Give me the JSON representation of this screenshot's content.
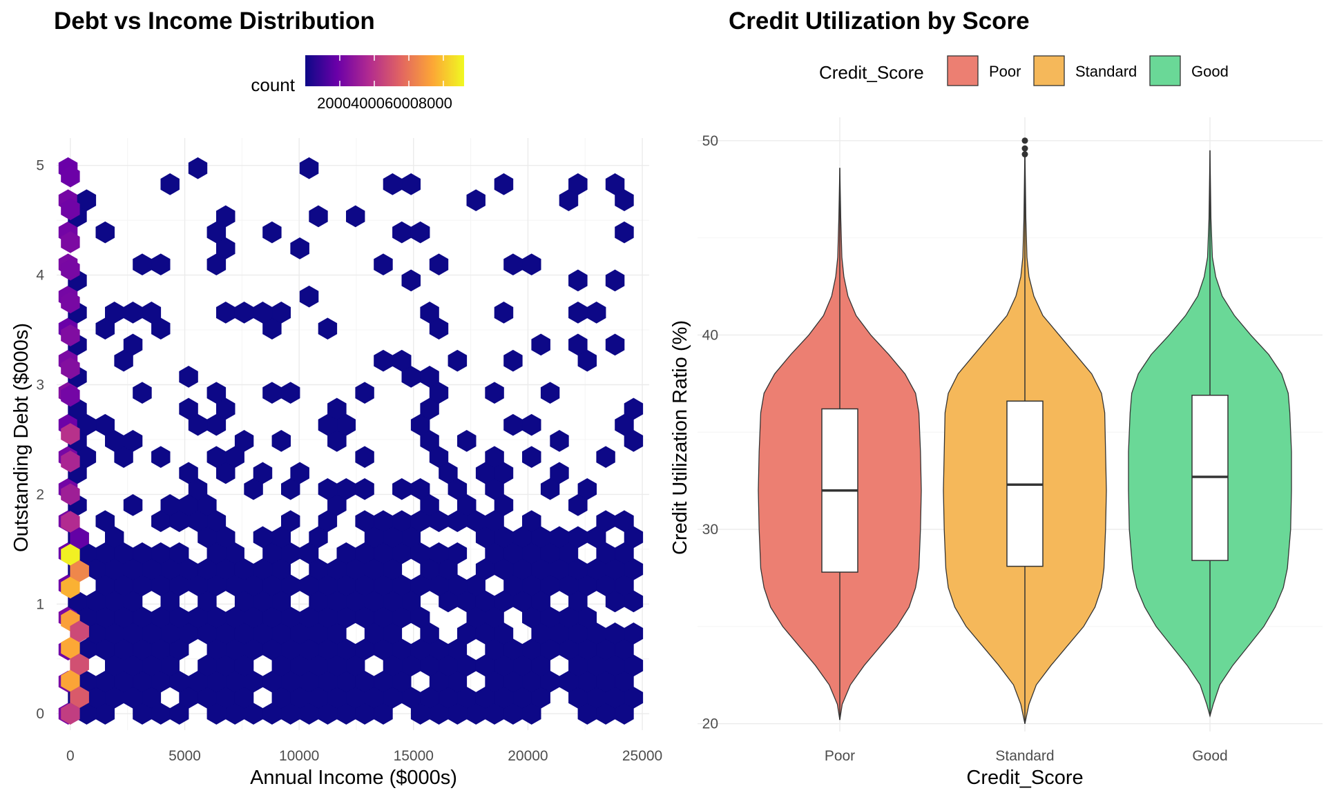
{
  "chart_data": [
    {
      "type": "hexbin",
      "title": "Debt vs Income Distribution",
      "xlabel": "Annual Income ($000s)",
      "ylabel": "Outstanding Debt ($000s)",
      "xlim": [
        -600,
        25300
      ],
      "ylim": [
        -0.15,
        5.25
      ],
      "x_ticks": [
        0,
        5000,
        10000,
        15000,
        20000,
        25000
      ],
      "x_tick_labels": [
        "0",
        "5000",
        "10000",
        "15000",
        "20000",
        "25000"
      ],
      "y_ticks": [
        0,
        1,
        2,
        3,
        4,
        5
      ],
      "y_tick_labels": [
        "0",
        "1",
        "2",
        "3",
        "4",
        "5"
      ],
      "grid": true,
      "legend": {
        "title": "count",
        "position": "top",
        "breaks": [
          2000,
          4000,
          6000,
          8000
        ],
        "label_text": "2000400060008000",
        "range": [
          1,
          9200
        ],
        "palette": "plasma"
      },
      "points_high_count": [
        {
          "x": 0,
          "y": 1.45,
          "count": 9000
        },
        {
          "x": 0,
          "y": 1.15,
          "count": 7600
        },
        {
          "x": 0,
          "y": 0.6,
          "count": 7400
        },
        {
          "x": 0,
          "y": 0.3,
          "count": 7300
        },
        {
          "x": 0,
          "y": 0.85,
          "count": 7200
        },
        {
          "x": 400,
          "y": 1.3,
          "count": 6500
        },
        {
          "x": 400,
          "y": 0.15,
          "count": 5200
        },
        {
          "x": 400,
          "y": 0.45,
          "count": 4900
        },
        {
          "x": 400,
          "y": 0.75,
          "count": 4700
        },
        {
          "x": 0,
          "y": 0.0,
          "count": 4300
        },
        {
          "x": 0,
          "y": 2.55,
          "count": 3900
        },
        {
          "x": 0,
          "y": 1.75,
          "count": 3700
        },
        {
          "x": 0,
          "y": 2.3,
          "count": 3500
        },
        {
          "x": 0,
          "y": 2.0,
          "count": 3200
        },
        {
          "x": 0,
          "y": 3.15,
          "count": 2500
        },
        {
          "x": 0,
          "y": 3.45,
          "count": 2400
        },
        {
          "x": 0,
          "y": 4.3,
          "count": 2300
        },
        {
          "x": 0,
          "y": 4.05,
          "count": 2200
        },
        {
          "x": 0,
          "y": 3.75,
          "count": 2200
        },
        {
          "x": 0,
          "y": 2.9,
          "count": 2100
        },
        {
          "x": 0,
          "y": 4.6,
          "count": 2000
        },
        {
          "x": 0,
          "y": 4.9,
          "count": 1900
        },
        {
          "x": 400,
          "y": 1.6,
          "count": 1700
        }
      ],
      "count_note": "all other occupied bins have count near 1"
    },
    {
      "type": "violin",
      "title": "Credit Utilization by Score",
      "xlabel": "Credit_Score",
      "ylabel": "Credit Utilization Ratio (%)",
      "ylim": [
        19.6,
        51.2
      ],
      "y_ticks": [
        20,
        30,
        40,
        50
      ],
      "y_tick_labels": [
        "20",
        "30",
        "40",
        "50"
      ],
      "grid": true,
      "legend": {
        "title": "Credit_Score",
        "position": "top"
      },
      "categories": [
        "Poor",
        "Standard",
        "Good"
      ],
      "series": [
        {
          "name": "Poor",
          "color": "#ec7f72",
          "min": 20.2,
          "max": 48.6,
          "q1": 27.8,
          "median": 32.0,
          "q3": 36.2,
          "outliers": [],
          "density": [
            [
              20.2,
              0.0
            ],
            [
              21.0,
              0.03
            ],
            [
              22.0,
              0.13
            ],
            [
              23.0,
              0.3
            ],
            [
              24.0,
              0.5
            ],
            [
              25.0,
              0.7
            ],
            [
              26.0,
              0.85
            ],
            [
              27.0,
              0.93
            ],
            [
              28.0,
              0.97
            ],
            [
              30.0,
              0.99
            ],
            [
              32.0,
              1.0
            ],
            [
              34.0,
              0.99
            ],
            [
              36.0,
              0.97
            ],
            [
              37.0,
              0.93
            ],
            [
              38.0,
              0.8
            ],
            [
              39.0,
              0.6
            ],
            [
              40.0,
              0.38
            ],
            [
              41.0,
              0.2
            ],
            [
              42.0,
              0.1
            ],
            [
              43.0,
              0.05
            ],
            [
              44.0,
              0.025
            ],
            [
              46.0,
              0.012
            ],
            [
              48.6,
              0.0
            ]
          ]
        },
        {
          "name": "Standard",
          "color": "#f5b85a",
          "min": 20.0,
          "max": 49.7,
          "q1": 28.1,
          "median": 32.3,
          "q3": 36.6,
          "outliers": [
            49.3,
            49.6,
            50.0
          ],
          "density": [
            [
              20.0,
              0.0
            ],
            [
              21.0,
              0.05
            ],
            [
              22.0,
              0.14
            ],
            [
              23.0,
              0.32
            ],
            [
              24.0,
              0.52
            ],
            [
              25.0,
              0.72
            ],
            [
              26.0,
              0.86
            ],
            [
              27.0,
              0.94
            ],
            [
              28.0,
              0.97
            ],
            [
              30.0,
              0.99
            ],
            [
              32.0,
              1.0
            ],
            [
              34.0,
              0.99
            ],
            [
              36.0,
              0.98
            ],
            [
              37.0,
              0.94
            ],
            [
              38.0,
              0.82
            ],
            [
              39.0,
              0.62
            ],
            [
              40.0,
              0.42
            ],
            [
              41.0,
              0.22
            ],
            [
              42.0,
              0.11
            ],
            [
              43.0,
              0.05
            ],
            [
              44.0,
              0.025
            ],
            [
              46.0,
              0.012
            ],
            [
              49.7,
              0.0
            ]
          ]
        },
        {
          "name": "Good",
          "color": "#6ad897",
          "min": 20.4,
          "max": 49.5,
          "q1": 28.4,
          "median": 32.7,
          "q3": 36.9,
          "outliers": [],
          "density": [
            [
              20.4,
              0.0
            ],
            [
              21.0,
              0.04
            ],
            [
              22.0,
              0.12
            ],
            [
              23.0,
              0.28
            ],
            [
              24.0,
              0.47
            ],
            [
              25.0,
              0.66
            ],
            [
              26.0,
              0.8
            ],
            [
              27.0,
              0.9
            ],
            [
              28.0,
              0.95
            ],
            [
              30.0,
              0.99
            ],
            [
              32.0,
              1.0
            ],
            [
              34.0,
              1.0
            ],
            [
              36.0,
              0.98
            ],
            [
              37.0,
              0.96
            ],
            [
              38.0,
              0.88
            ],
            [
              39.0,
              0.72
            ],
            [
              40.0,
              0.5
            ],
            [
              41.0,
              0.3
            ],
            [
              42.0,
              0.15
            ],
            [
              43.0,
              0.07
            ],
            [
              44.0,
              0.03
            ],
            [
              46.0,
              0.012
            ],
            [
              49.5,
              0.0
            ]
          ]
        }
      ]
    }
  ]
}
